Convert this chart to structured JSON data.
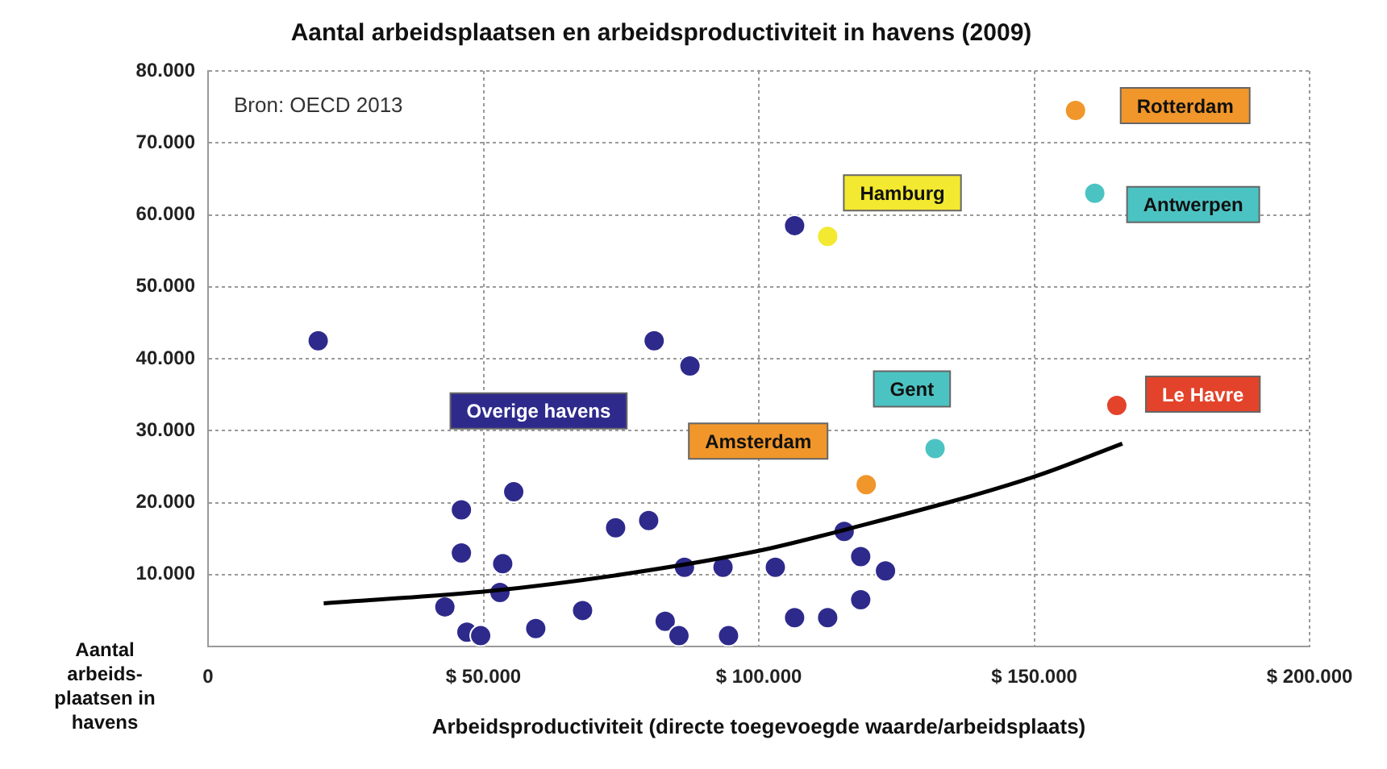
{
  "chart_data": {
    "type": "scatter",
    "title": "Aantal arbeidsplaatsen en arbeidsproductiviteit in havens (2009)",
    "xlabel": "Arbeidsproductiviteit (directe toegevoegde waarde/arbeidsplaats)",
    "ylabel": "Aantal arbeids- plaatsen in havens",
    "annotations": [
      "Bron: OECD 2013"
    ],
    "xlim": [
      0,
      200000
    ],
    "xticks": [
      {
        "value": 0,
        "label": "0"
      },
      {
        "value": 50000,
        "label": "$ 50.000"
      },
      {
        "value": 100000,
        "label": "$ 100.000"
      },
      {
        "value": 150000,
        "label": "$ 150.000"
      },
      {
        "value": 200000,
        "label": "$ 200.000"
      }
    ],
    "ylim": [
      0,
      80000
    ],
    "yticks": [
      {
        "value": 0,
        "label": null
      },
      {
        "value": 10000,
        "label": "10.000"
      },
      {
        "value": 20000,
        "label": "20.000"
      },
      {
        "value": 30000,
        "label": "30.000"
      },
      {
        "value": 40000,
        "label": "40.000"
      },
      {
        "value": 50000,
        "label": "50.000"
      },
      {
        "value": 60000,
        "label": "60.000"
      },
      {
        "value": 70000,
        "label": "70.000"
      },
      {
        "value": 80000,
        "label": "80.000"
      }
    ],
    "grid": true,
    "legend": false,
    "marker": "circle",
    "series": [
      {
        "name": "Overige havens",
        "color": "#2e2a8c",
        "x": [
          20000,
          81000,
          87500,
          46000,
          46000,
          55500,
          53500,
          53000,
          43000,
          47000,
          49500,
          59500,
          68000,
          74000,
          80000,
          86500,
          83000,
          85500,
          93500,
          94500,
          103000,
          106500,
          112500,
          115500,
          118500,
          118500,
          123000,
          106500
        ],
        "values": [
          42500,
          42500,
          39000,
          19000,
          13000,
          21500,
          11500,
          7500,
          5500,
          2000,
          1500,
          2500,
          5000,
          16500,
          17500,
          11000,
          3500,
          1500,
          11000,
          1500,
          11000,
          4000,
          4000,
          16000,
          12500,
          6500,
          10500,
          58500
        ]
      },
      {
        "name": "Hamburg",
        "color": "#f2e930",
        "x": [
          112500
        ],
        "values": [
          57000
        ]
      },
      {
        "name": "Rotterdam",
        "color": "#f0962a",
        "x": [
          157500
        ],
        "values": [
          74500
        ]
      },
      {
        "name": "Antwerpen",
        "color": "#4cc3c3",
        "x": [
          161000
        ],
        "values": [
          63000
        ]
      },
      {
        "name": "Le Havre",
        "color": "#e2432a",
        "x": [
          165000
        ],
        "values": [
          33500
        ]
      },
      {
        "name": "Gent",
        "color": "#4cc3c3",
        "x": [
          132000
        ],
        "values": [
          27500
        ]
      },
      {
        "name": "Amsterdam",
        "color": "#f0962a",
        "x": [
          119500
        ],
        "values": [
          22500
        ]
      },
      {
        "type": "line",
        "marker": "none",
        "color": "#000000",
        "x": [
          21000,
          51000,
          75000,
          100000,
          115000,
          150000,
          166000
        ],
        "values": [
          6000,
          7700,
          10000,
          13300,
          16100,
          23600,
          28200
        ]
      }
    ]
  }
}
